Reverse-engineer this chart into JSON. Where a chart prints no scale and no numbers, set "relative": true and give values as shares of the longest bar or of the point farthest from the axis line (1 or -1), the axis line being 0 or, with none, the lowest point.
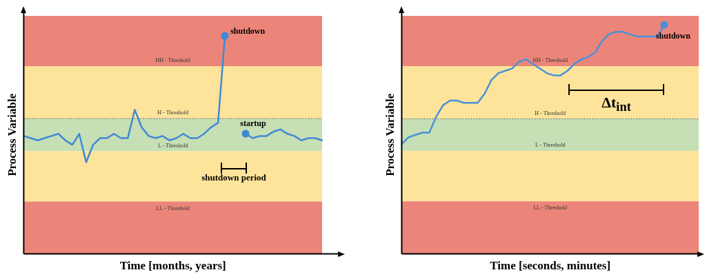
{
  "chart_data": [
    {
      "type": "line",
      "xlabel": "Time [months, years]",
      "ylabel": "Process Variable",
      "relative": true,
      "grid": false,
      "categories": [
        null,
        null,
        null,
        null,
        null,
        null,
        null,
        null,
        null,
        null,
        null,
        null,
        null,
        null,
        null,
        null,
        null,
        null,
        null,
        null,
        null,
        null,
        null,
        null,
        null,
        null,
        null,
        null,
        null,
        null,
        null,
        null,
        null,
        null,
        null,
        null,
        null,
        null,
        null,
        null,
        null,
        null,
        null,
        null
      ],
      "series": [
        {
          "color": "#3f88d6",
          "values": [
            0.54,
            0.53,
            0.52,
            0.53,
            0.54,
            0.55,
            0.52,
            0.5,
            0.55,
            0.42,
            0.5,
            0.53,
            0.53,
            0.55,
            0.53,
            0.53,
            0.66,
            0.58,
            0.54,
            0.53,
            0.54,
            0.52,
            0.53,
            0.55,
            0.53,
            0.53,
            0.55,
            0.58,
            0.6,
            1,
            null,
            null,
            null,
            null,
            null,
            null,
            null,
            null,
            null,
            null,
            null,
            null,
            null,
            null
          ]
        },
        {
          "color": "#3f88d6",
          "values": [
            null,
            null,
            null,
            null,
            null,
            null,
            null,
            null,
            null,
            null,
            null,
            null,
            null,
            null,
            null,
            null,
            null,
            null,
            null,
            null,
            null,
            null,
            null,
            null,
            null,
            null,
            null,
            null,
            null,
            null,
            null,
            null,
            0.55,
            0.53,
            0.54,
            0.54,
            0.56,
            0.57,
            0.55,
            0.54,
            0.52,
            0.53,
            0.53,
            0.52
          ]
        }
      ],
      "bands": [
        {
          "axis": "y",
          "from": 0.86,
          "to": 1.09,
          "label": "HH - Threshold",
          "color": "#ec8579"
        },
        {
          "axis": "y",
          "from": 0.62,
          "to": 0.86,
          "label": "H - Threshold",
          "color": "#fde49a"
        },
        {
          "axis": "y",
          "from": 0.47,
          "to": 0.62,
          "label": "L - Threshold",
          "color": "#c6dfb4"
        },
        {
          "axis": "y",
          "from": 0.24,
          "to": 0.47,
          "label": null,
          "color": "#fde49a"
        },
        {
          "axis": "y",
          "from": 0,
          "to": 0.24,
          "label": "LL - Threshold",
          "color": "#ec8579"
        }
      ],
      "ref_lines": [
        {
          "axis": "y",
          "value": 0.62,
          "label": null,
          "color": "#666666",
          "line_style": "dotted"
        }
      ],
      "annotations": [
        "shutdown",
        "startup",
        "shutdown period"
      ]
    },
    {
      "type": "line",
      "xlabel": "Time [seconds, minutes]",
      "ylabel": "Process Variable",
      "relative": true,
      "grid": false,
      "categories": [
        null,
        null,
        null,
        null,
        null,
        null,
        null,
        null,
        null,
        null,
        null,
        null,
        null,
        null,
        null,
        null,
        null,
        null,
        null,
        null,
        null,
        null,
        null,
        null,
        null,
        null,
        null,
        null,
        null,
        null,
        null,
        null,
        null,
        null,
        null,
        null,
        null,
        null,
        null,
        null,
        null,
        null,
        null,
        null
      ],
      "series": [
        {
          "color": "#4a90d9",
          "values": [
            0.48,
            0.51,
            0.52,
            0.53,
            0.53,
            0.6,
            0.65,
            0.67,
            0.67,
            0.66,
            0.66,
            0.66,
            0.7,
            0.76,
            0.79,
            0.8,
            0.81,
            0.84,
            0.85,
            0.83,
            0.81,
            0.79,
            0.78,
            0.78,
            0.8,
            0.83,
            0.85,
            0.86,
            0.88,
            0.93,
            0.96,
            0.97,
            0.97,
            0.96,
            0.95,
            0.95,
            0.95,
            0.95,
            1,
            null,
            null,
            null,
            null,
            null
          ]
        }
      ],
      "bands": [
        {
          "axis": "y",
          "from": 0.82,
          "to": 1.04,
          "label": "HH - Threshold",
          "color": "#ec8579"
        },
        {
          "axis": "y",
          "from": 0.59,
          "to": 0.82,
          "label": "H - Threshold",
          "color": "#fde49a"
        },
        {
          "axis": "y",
          "from": 0.45,
          "to": 0.59,
          "label": "L - Threshold",
          "color": "#c6dfb4"
        },
        {
          "axis": "y",
          "from": 0.23,
          "to": 0.45,
          "label": null,
          "color": "#fde49a"
        },
        {
          "axis": "y",
          "from": 0,
          "to": 0.23,
          "label": "LL - Threshold",
          "color": "#ec8579"
        }
      ],
      "ref_lines": [
        {
          "axis": "y",
          "value": 0.59,
          "label": null,
          "color": "#666666",
          "line_style": "dotted"
        }
      ],
      "annotations": [
        "shutdown",
        "Δt$_{int}$"
      ]
    }
  ]
}
